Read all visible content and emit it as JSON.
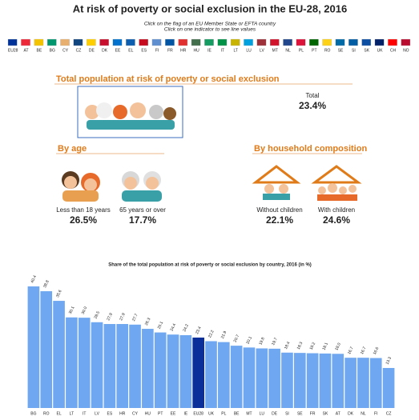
{
  "header": {
    "title": "At risk of poverty or social exclusion in the EU-28, 2016",
    "instructions": [
      "Click on the flag of an EU Member State or EFTA country",
      "Click on one indicator to see line values"
    ]
  },
  "flags": [
    {
      "code": "EU28",
      "color": "#003399"
    },
    {
      "code": "AT",
      "color": "#ed2939"
    },
    {
      "code": "BE",
      "color": "#f4c300"
    },
    {
      "code": "BG",
      "color": "#00966e"
    },
    {
      "code": "CY",
      "color": "#e8b070"
    },
    {
      "code": "CZ",
      "color": "#11457e"
    },
    {
      "code": "DE",
      "color": "#ffce00"
    },
    {
      "code": "DK",
      "color": "#c8102e"
    },
    {
      "code": "EE",
      "color": "#0072ce"
    },
    {
      "code": "EL",
      "color": "#0d5eaf"
    },
    {
      "code": "ES",
      "color": "#c60b1e"
    },
    {
      "code": "FI",
      "color": "#5f8fcf"
    },
    {
      "code": "FR",
      "color": "#0055a4"
    },
    {
      "code": "HR",
      "color": "#e03030"
    },
    {
      "code": "HU",
      "color": "#436f4d"
    },
    {
      "code": "IE",
      "color": "#169b62"
    },
    {
      "code": "IT",
      "color": "#009246"
    },
    {
      "code": "LT",
      "color": "#c8b400"
    },
    {
      "code": "LU",
      "color": "#00a1de"
    },
    {
      "code": "LV",
      "color": "#9e3039"
    },
    {
      "code": "MT",
      "color": "#cf142b"
    },
    {
      "code": "NL",
      "color": "#21468b"
    },
    {
      "code": "PL",
      "color": "#dc143c"
    },
    {
      "code": "PT",
      "color": "#006600"
    },
    {
      "code": "RO",
      "color": "#fcd116"
    },
    {
      "code": "SE",
      "color": "#006aa7"
    },
    {
      "code": "SI",
      "color": "#005da4"
    },
    {
      "code": "SK",
      "color": "#0b4ea2"
    },
    {
      "code": "UK",
      "color": "#012169"
    },
    {
      "code": "CH",
      "color": "#ff0000"
    },
    {
      "code": "NO",
      "color": "#ba0c2f"
    }
  ],
  "total": {
    "heading": "Total population at risk of poverty or social exclusion",
    "label": "Total",
    "value": "23.4%"
  },
  "by_age": {
    "heading": "By age",
    "items": [
      {
        "label": "Less than 18 years",
        "value": "26.5%"
      },
      {
        "label": "65 years or over",
        "value": "17.7%"
      }
    ]
  },
  "by_household": {
    "heading": "By household composition",
    "items": [
      {
        "label": "Without children",
        "value": "22.1%"
      },
      {
        "label": "With children",
        "value": "24.6%"
      }
    ]
  },
  "chart_data": {
    "type": "bar",
    "title": "Share of the total population at risk of poverty or social exclusion by country, 2016 (in %)",
    "categories": [
      "BG",
      "RO",
      "EL",
      "LT",
      "IT",
      "LV",
      "ES",
      "HR",
      "CY",
      "HU",
      "PT",
      "EE",
      "IE",
      "EU28",
      "UK",
      "PL",
      "BE",
      "MT",
      "LU",
      "DE",
      "SI",
      "SE",
      "FR",
      "SK",
      "AT",
      "DK",
      "NL",
      "FI",
      "CZ"
    ],
    "values": [
      40.4,
      38.8,
      35.6,
      30.1,
      30.0,
      28.5,
      27.9,
      27.9,
      27.7,
      26.3,
      25.1,
      24.4,
      24.2,
      23.4,
      22.2,
      21.9,
      20.7,
      20.1,
      19.8,
      19.7,
      18.4,
      18.3,
      18.2,
      18.1,
      18.0,
      16.7,
      16.7,
      16.6,
      13.3
    ],
    "value_labels": [
      "40.4",
      "38.8",
      "35.6",
      "30.1",
      "30.0",
      "28.5",
      "27.9",
      "27.9",
      "27.7",
      "26.3",
      "25.1",
      "24.4",
      "24.2",
      "23.4",
      "22.2",
      "21.9",
      "20.7",
      "20.1",
      "19.8",
      "19.7",
      "18.4",
      "18.3",
      "18.2",
      "18.1",
      "18.0",
      "16.7",
      "16.7",
      "16.6",
      "13.3"
    ],
    "color": "#6fa8f0",
    "highlight_color": "#0a2f9b",
    "highlight_index": 13
  }
}
